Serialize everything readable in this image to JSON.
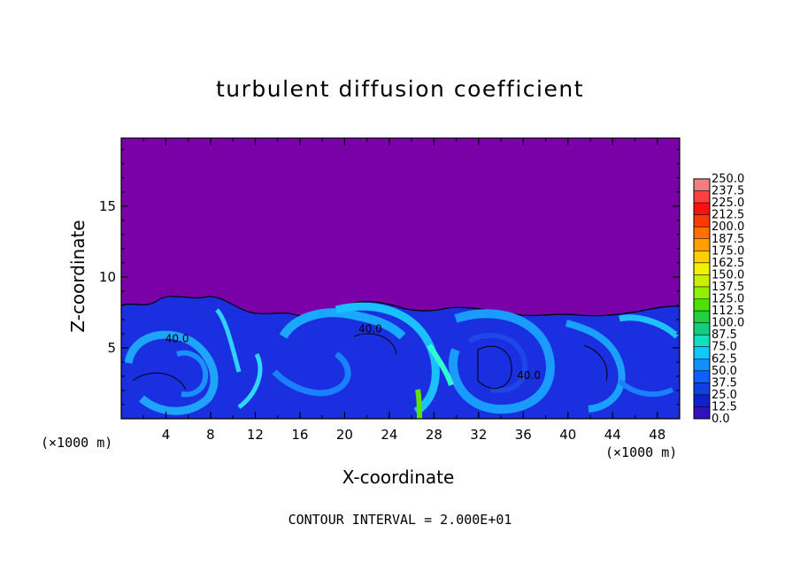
{
  "chart_data": {
    "type": "heatmap",
    "title": "turbulent diffusion coefficient",
    "xlabel": "X-coordinate",
    "ylabel": "Z-coordinate",
    "x_unit": "(×1000 m)",
    "xlim": [
      0,
      50
    ],
    "ylim": [
      0,
      19.8
    ],
    "x_ticks": [
      4,
      8,
      12,
      16,
      20,
      24,
      28,
      32,
      36,
      40,
      44,
      48
    ],
    "y_ticks": [
      5,
      10,
      15
    ],
    "contour_labels": [
      {
        "text": "40.0",
        "x": 5,
        "z": 5.4
      },
      {
        "text": "40.0",
        "x": 22.3,
        "z": 6.1
      },
      {
        "text": "40.0",
        "x": 36.5,
        "z": 2.8
      }
    ],
    "colorbar": {
      "levels": [
        "250.0",
        "237.5",
        "225.0",
        "212.5",
        "200.0",
        "187.5",
        "175.0",
        "162.5",
        "150.0",
        "137.5",
        "125.0",
        "112.5",
        "100.0",
        "87.5",
        "75.0",
        "62.5",
        "50.0",
        "37.5",
        "25.0",
        "12.5",
        "0.0"
      ],
      "colors": [
        "#f08080",
        "#ff4040",
        "#ff1010",
        "#ff3a00",
        "#ff7000",
        "#ffa000",
        "#ffd000",
        "#f0f000",
        "#c8f000",
        "#90f000",
        "#50e000",
        "#20d040",
        "#10d080",
        "#10e0c0",
        "#10c8ff",
        "#1090ff",
        "#1060ff",
        "#1040e0",
        "#1020d0",
        "#3010c0",
        "#7a00a8"
      ]
    },
    "contour_interval_text": "CONTOUR INTERVAL = 2.000E+01"
  }
}
